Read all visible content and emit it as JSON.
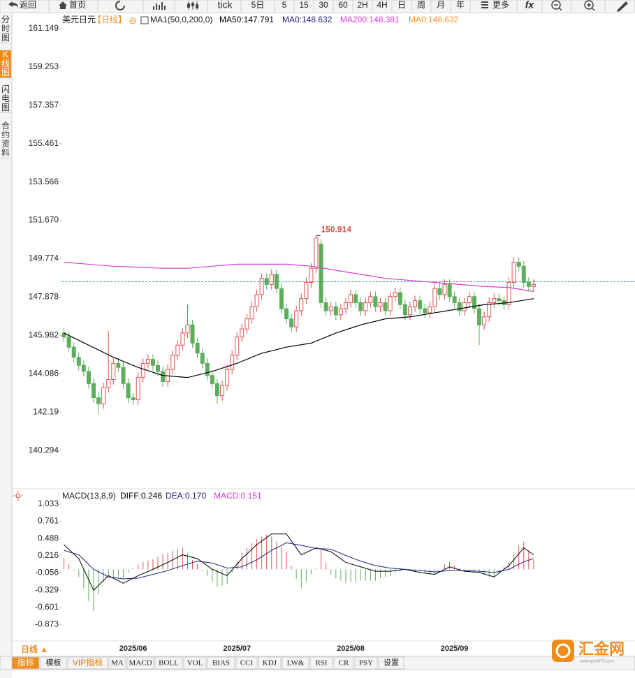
{
  "toolbar": {
    "items": [
      "返回",
      "首页",
      "tick",
      "5日",
      "5",
      "15",
      "30",
      "60",
      "2H",
      "4H",
      "日",
      "周",
      "月",
      "年",
      "更多",
      "fx"
    ]
  },
  "sidebar": {
    "tabs": [
      "分时图",
      "K线图",
      "闪电图",
      "合约资料"
    ],
    "active": 1
  },
  "chart_data": [
    {
      "type": "candlestick",
      "title": "美元日元",
      "subtitle": "【日线】",
      "legend": [
        {
          "text": "MA1(50,0,200,0)",
          "color": "#222222"
        },
        {
          "text": "MA50:147.791",
          "color": "#000000"
        },
        {
          "text": "MA0:148.632",
          "color": "#1a237e"
        },
        {
          "text": "MA200:148.381",
          "color": "#d63cd6"
        },
        {
          "text": "MA0:148.632",
          "color": "#f0932b"
        }
      ],
      "up_color": "#d9534f",
      "down_color": "#5cae5c",
      "open": [
        146.1,
        145.9,
        145.4,
        144.9,
        144.5,
        144.2,
        143.6,
        142.9,
        142.6,
        143.4,
        143.8,
        144.6,
        144.4,
        143.6,
        142.9,
        142.8,
        143.9,
        144.6,
        144.8,
        144.5,
        144.2,
        143.7,
        144.3,
        145.0,
        145.5,
        146.1,
        146.5,
        145.6,
        145.1,
        144.6,
        144.0,
        143.6,
        143.0,
        143.5,
        144.3,
        145.0,
        145.9,
        146.3,
        146.8,
        147.4,
        148.0,
        148.8,
        148.5,
        149.0,
        148.3,
        147.3,
        146.8,
        146.4,
        147.2,
        147.8,
        148.6,
        149.3,
        150.5,
        147.6,
        147.2,
        147.4,
        147.0,
        147.3,
        147.6,
        148.0,
        147.6,
        147.2,
        147.6,
        147.9,
        147.4,
        147.6,
        147.2,
        147.9,
        148.1,
        147.5,
        147.0,
        147.4,
        147.7,
        147.3,
        147.1,
        147.4,
        148.3,
        148.0,
        148.5,
        147.9,
        147.6,
        147.2,
        147.6,
        147.9,
        147.3,
        146.5,
        146.9,
        147.6,
        147.8,
        147.7,
        147.5,
        148.6,
        149.6,
        149.4,
        148.6,
        148.4
      ],
      "high": [
        146.35,
        146.15,
        145.65,
        145.15,
        144.75,
        144.45,
        143.85,
        143.15,
        143.65,
        146.2,
        144.85,
        144.85,
        144.65,
        143.85,
        143.15,
        144.15,
        144.85,
        145.05,
        145.05,
        144.75,
        144.45,
        144.55,
        145.25,
        145.75,
        146.35,
        147.5,
        146.75,
        145.85,
        145.35,
        144.85,
        144.25,
        143.85,
        143.75,
        144.55,
        145.25,
        146.15,
        146.55,
        147.05,
        147.65,
        148.25,
        149.05,
        149.05,
        149.25,
        149.25,
        148.55,
        147.55,
        147.05,
        147.45,
        148.05,
        148.85,
        149.55,
        150.914,
        150.75,
        147.85,
        147.65,
        147.65,
        147.55,
        147.85,
        148.25,
        148.25,
        147.85,
        147.85,
        148.15,
        148.15,
        147.85,
        147.85,
        148.15,
        148.35,
        148.35,
        147.75,
        147.65,
        147.95,
        147.95,
        147.55,
        147.65,
        148.55,
        148.55,
        148.75,
        148.75,
        148.15,
        147.85,
        147.85,
        148.15,
        148.15,
        147.55,
        147.15,
        147.85,
        148.05,
        148.05,
        147.95,
        148.85,
        149.85,
        149.85,
        149.65,
        148.85,
        148.75
      ],
      "low": [
        145.65,
        145.15,
        144.65,
        144.25,
        143.95,
        143.35,
        142.65,
        142.1,
        142.35,
        143.15,
        143.55,
        144.15,
        143.35,
        142.65,
        142.55,
        142.55,
        143.65,
        144.35,
        144.25,
        143.95,
        143.45,
        143.45,
        144.05,
        144.75,
        145.25,
        145.85,
        145.35,
        144.85,
        144.35,
        143.75,
        143.35,
        142.6,
        142.75,
        143.25,
        144.05,
        144.75,
        145.65,
        146.05,
        146.55,
        147.15,
        147.75,
        148.25,
        148.25,
        148.05,
        147.05,
        146.55,
        146.15,
        146.15,
        146.95,
        147.55,
        148.35,
        149.05,
        147.35,
        146.95,
        146.95,
        146.75,
        146.75,
        147.05,
        147.35,
        147.35,
        146.95,
        146.95,
        147.35,
        147.15,
        147.15,
        146.95,
        146.95,
        147.65,
        147.25,
        146.75,
        146.75,
        147.15,
        147.05,
        146.85,
        146.85,
        147.15,
        147.75,
        147.75,
        147.65,
        147.35,
        146.95,
        146.95,
        147.35,
        147.05,
        145.5,
        146.25,
        146.65,
        147.35,
        147.45,
        147.25,
        147.25,
        148.35,
        149.15,
        148.35,
        148.15,
        148.15
      ],
      "close": [
        145.9,
        145.4,
        144.9,
        144.5,
        144.2,
        143.6,
        142.9,
        142.6,
        143.4,
        143.8,
        144.6,
        144.4,
        143.6,
        142.9,
        142.8,
        143.9,
        144.6,
        144.8,
        144.5,
        144.2,
        143.7,
        144.3,
        145.0,
        145.5,
        146.1,
        146.5,
        145.6,
        145.1,
        144.6,
        144.0,
        143.6,
        143.0,
        143.5,
        144.3,
        145.0,
        145.9,
        146.3,
        146.8,
        147.4,
        148.0,
        148.8,
        148.5,
        149.0,
        148.3,
        147.3,
        146.8,
        146.4,
        147.2,
        147.8,
        148.6,
        149.3,
        150.8,
        147.6,
        147.2,
        147.4,
        147.0,
        147.3,
        147.6,
        148.0,
        147.6,
        147.2,
        147.6,
        147.9,
        147.4,
        147.6,
        147.2,
        147.9,
        148.1,
        147.5,
        147.0,
        147.4,
        147.7,
        147.3,
        147.1,
        147.4,
        148.3,
        148.0,
        148.5,
        147.9,
        147.6,
        147.2,
        147.6,
        147.9,
        147.3,
        146.5,
        146.9,
        147.6,
        147.8,
        147.7,
        147.5,
        148.6,
        149.6,
        149.4,
        148.6,
        148.4,
        148.5
      ],
      "lines": [
        {
          "color": "#000000",
          "x": [
            0,
            5,
            10,
            15,
            20,
            25,
            30,
            35,
            40,
            45,
            50,
            55,
            60,
            65,
            70,
            75,
            80,
            85,
            90,
            95
          ],
          "values": [
            146.1,
            145.5,
            144.9,
            144.4,
            144.0,
            143.9,
            144.2,
            144.6,
            145.1,
            145.4,
            145.6,
            146.1,
            146.5,
            146.8,
            146.9,
            147.1,
            147.3,
            147.5,
            147.6,
            147.8
          ]
        },
        {
          "color": "#d63cd6",
          "x": [
            0,
            5,
            10,
            15,
            20,
            25,
            30,
            35,
            40,
            45,
            50,
            55,
            60,
            65,
            70,
            75,
            80,
            85,
            90,
            95
          ],
          "values": [
            149.6,
            149.5,
            149.4,
            149.35,
            149.3,
            149.3,
            149.4,
            149.5,
            149.5,
            149.5,
            149.4,
            149.2,
            149.0,
            148.8,
            148.7,
            148.6,
            148.5,
            148.4,
            148.35,
            148.15
          ]
        }
      ],
      "ma0": 148.632,
      "ma0_color": "#2a9d9d",
      "xlim": [
        -0.5,
        115.5
      ],
      "xticks": [
        {
          "value": 14,
          "label": "2025/06"
        },
        {
          "value": 35,
          "label": "2025/07"
        },
        {
          "value": 58,
          "label": "2025/08"
        },
        {
          "value": 79,
          "label": "2025/09"
        }
      ],
      "ylim": [
        138.4,
        161.94
      ],
      "yticks": [
        161.149,
        159.253,
        157.357,
        155.461,
        153.566,
        {
          "value": 151.67,
          "label": "151.670"
        },
        149.774,
        147.878,
        145.982,
        144.086,
        142.19,
        140.294
      ]
    },
    {
      "type": "macd",
      "legend": [
        {
          "text": "MACD(13,8,9)",
          "color": "#222222"
        },
        {
          "text": "DIFF:0.246",
          "color": "#000000"
        },
        {
          "text": "DEA:0.170",
          "color": "#1a237e"
        },
        {
          "text": "MACD:0.151",
          "color": "#d63cd6"
        }
      ],
      "x": [
        0,
        3,
        6,
        9,
        12,
        15,
        18,
        21,
        24,
        27,
        30,
        33,
        36,
        39,
        42,
        45,
        48,
        51,
        54,
        57,
        60,
        63,
        66,
        69,
        72,
        75,
        78,
        81,
        84,
        87,
        90,
        93,
        95
      ],
      "diff": [
        0.39,
        0.17,
        -0.33,
        -0.1,
        -0.22,
        -0.1,
        0,
        0.11,
        0.23,
        0.17,
        0,
        -0.1,
        0.17,
        0.39,
        0.56,
        0.56,
        0.23,
        0.34,
        0.28,
        0.11,
        0.04,
        -0.03,
        -0.03,
        0,
        -0.05,
        -0.08,
        0.04,
        -0.03,
        -0.05,
        -0.12,
        0.06,
        0.34,
        0.23
      ],
      "dea": [
        0.3,
        0.23,
        0,
        -0.12,
        -0.15,
        -0.14,
        -0.08,
        -0.02,
        0.06,
        0.13,
        0.1,
        0.02,
        0.04,
        0.15,
        0.3,
        0.42,
        0.38,
        0.33,
        0.32,
        0.22,
        0.13,
        0.06,
        0.02,
        0,
        -0.02,
        -0.04,
        -0.02,
        -0.02,
        -0.03,
        -0.05,
        0,
        0.12,
        0.17
      ],
      "hist": [
        0.18,
        0.08,
        -0.02,
        -0.12,
        -0.3,
        -0.5,
        -0.66,
        -0.4,
        -0.2,
        -0.1,
        -0.15,
        -0.12,
        -0.14,
        -0.05,
        0.02,
        0.08,
        0.12,
        0.14,
        0.16,
        0.2,
        0.24,
        0.26,
        0.3,
        0.32,
        0.34,
        0.25,
        0.15,
        0.08,
        -0.02,
        -0.1,
        -0.2,
        -0.28,
        -0.26,
        -0.24,
        -0.05,
        0.12,
        0.26,
        0.34,
        0.42,
        0.48,
        0.52,
        0.55,
        0.52,
        0.44,
        0.36,
        0.28,
        0.05,
        -0.15,
        -0.3,
        -0.2,
        -0.08,
        0.02,
        0.3,
        0.1,
        -0.08,
        -0.14,
        -0.18,
        -0.22,
        -0.2,
        -0.19,
        -0.18,
        -0.18,
        -0.18,
        -0.18,
        -0.14,
        -0.12,
        -0.1,
        -0.06,
        -0.03,
        0,
        -0.02,
        -0.04,
        -0.06,
        -0.07,
        -0.08,
        -0.08,
        0,
        0.08,
        0.12,
        0.06,
        0.02,
        -0.02,
        -0.03,
        -0.04,
        -0.04,
        -0.08,
        -0.12,
        -0.14,
        -0.05,
        0.04,
        0.12,
        0.25,
        0.38,
        0.44,
        0.3,
        0.15
      ],
      "diff_color": "#000000",
      "dea_color": "#1a237e",
      "up_color": "#d9534f",
      "down_color": "#5cae5c",
      "xlim": [
        -0.5,
        115.5
      ],
      "ylim": [
        -1.135,
        1.077
      ],
      "yticks": [
        1.033,
        0.761,
        0.488,
        0.216,
        -0.056,
        -0.329,
        -0.601,
        -0.873
      ]
    }
  ],
  "footer": {
    "period": "日线 ▲",
    "tabs": [
      "指标",
      "模板",
      "VIP指标",
      "MA",
      "MACD",
      "BOLL",
      "VOL",
      "BIAS",
      "CCI",
      "KDJ",
      "LW&",
      "RSI",
      "CR",
      "PSY",
      "设置"
    ],
    "active": 0,
    "vip": 2
  },
  "logo": {
    "name": "汇金网",
    "url": "www.gold678.com"
  }
}
